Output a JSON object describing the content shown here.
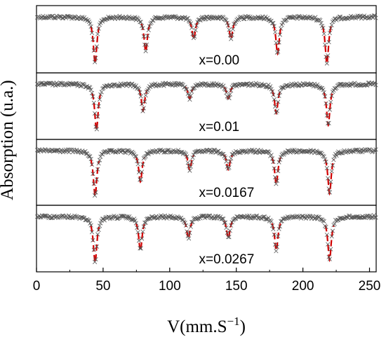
{
  "chart_data": {
    "type": "scatter",
    "title": "",
    "xlabel": "V(mm.S",
    "xlabel_sup": "−1",
    "xlabel_suffix": ")",
    "ylabel": "Absorption (u.a.)",
    "xlim": [
      0,
      255
    ],
    "xticks": [
      0,
      50,
      100,
      150,
      200,
      250
    ],
    "marker": "x",
    "marker_color": "#555555",
    "fit_color": "#d00000",
    "fit_style": "dashed",
    "panels": [
      {
        "label": "x=0.00",
        "peaks": [
          {
            "center": 44,
            "depth": 0.95
          },
          {
            "center": 82,
            "depth": 0.7
          },
          {
            "center": 118,
            "depth": 0.45
          },
          {
            "center": 146,
            "depth": 0.45
          },
          {
            "center": 181,
            "depth": 0.75
          },
          {
            "center": 218,
            "depth": 0.95
          }
        ]
      },
      {
        "label": "x=0.01",
        "peaks": [
          {
            "center": 45,
            "depth": 0.95
          },
          {
            "center": 80,
            "depth": 0.55
          },
          {
            "center": 115,
            "depth": 0.3
          },
          {
            "center": 144,
            "depth": 0.3
          },
          {
            "center": 180,
            "depth": 0.6
          },
          {
            "center": 219,
            "depth": 0.85
          }
        ]
      },
      {
        "label": "x=0.0167",
        "peaks": [
          {
            "center": 44,
            "depth": 0.95
          },
          {
            "center": 78,
            "depth": 0.65
          },
          {
            "center": 115,
            "depth": 0.4
          },
          {
            "center": 144,
            "depth": 0.4
          },
          {
            "center": 180,
            "depth": 0.7
          },
          {
            "center": 220,
            "depth": 0.9
          }
        ]
      },
      {
        "label": "x=0.0267",
        "peaks": [
          {
            "center": 44,
            "depth": 0.95
          },
          {
            "center": 78,
            "depth": 0.7
          },
          {
            "center": 114,
            "depth": 0.45
          },
          {
            "center": 144,
            "depth": 0.45
          },
          {
            "center": 180,
            "depth": 0.7
          },
          {
            "center": 220,
            "depth": 0.9
          }
        ]
      }
    ]
  }
}
